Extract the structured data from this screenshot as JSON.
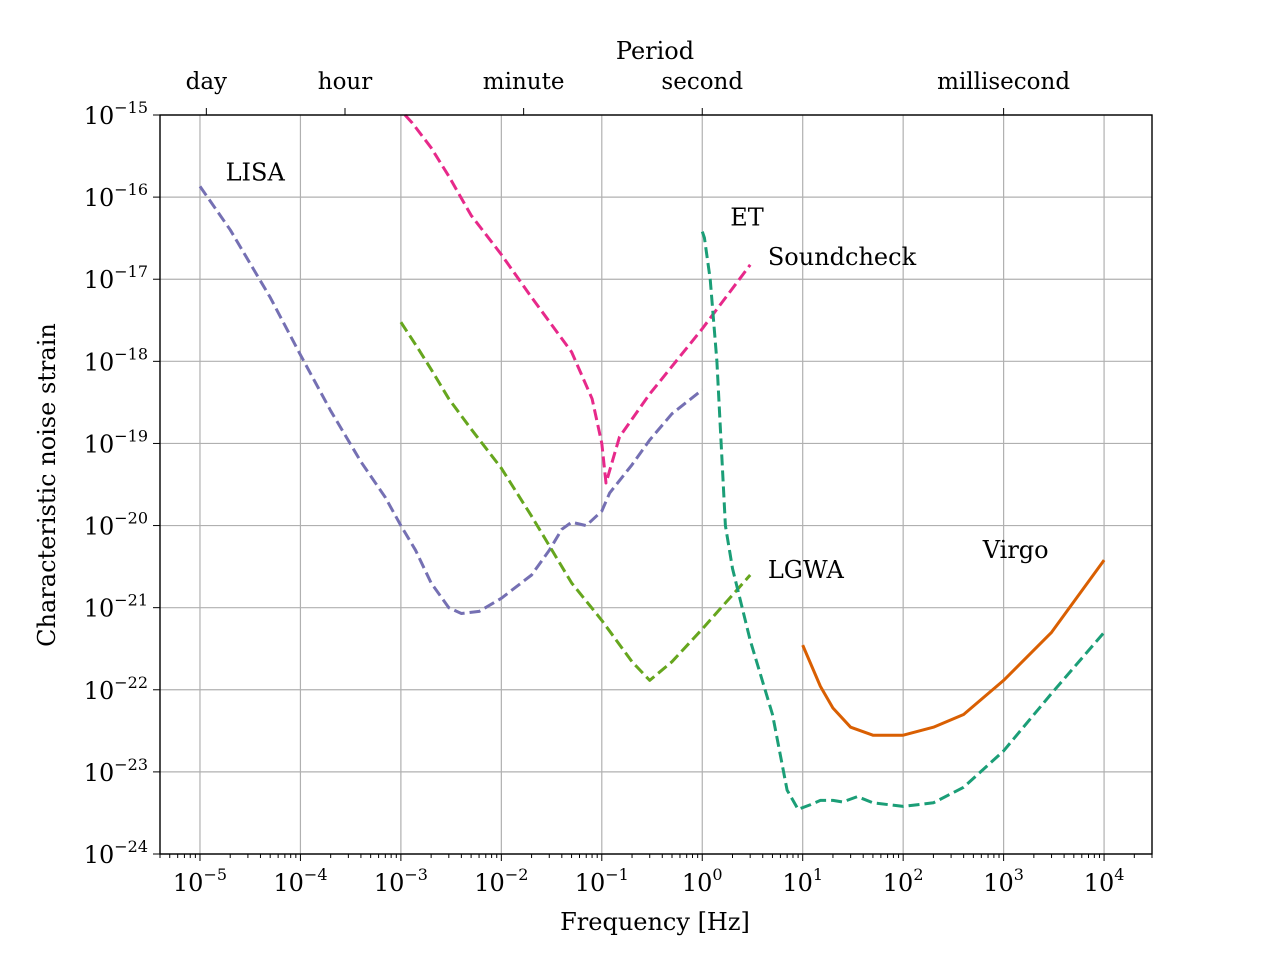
{
  "chart_data": {
    "type": "line",
    "xscale": "log",
    "yscale": "log",
    "xlabel": "Frequency [Hz]",
    "ylabel": "Characteristic noise strain",
    "xlim": [
      4e-06,
      30000
    ],
    "ylim": [
      1e-24,
      1e-15
    ],
    "grid": true,
    "x_ticks": [
      {
        "base": "10",
        "exp": "−5",
        "value": 1e-05
      },
      {
        "base": "10",
        "exp": "−4",
        "value": 0.0001
      },
      {
        "base": "10",
        "exp": "−3",
        "value": 0.001
      },
      {
        "base": "10",
        "exp": "−2",
        "value": 0.01
      },
      {
        "base": "10",
        "exp": "−1",
        "value": 0.1
      },
      {
        "base": "10",
        "exp": "0",
        "value": 1
      },
      {
        "base": "10",
        "exp": "1",
        "value": 10
      },
      {
        "base": "10",
        "exp": "2",
        "value": 100
      },
      {
        "base": "10",
        "exp": "3",
        "value": 1000
      },
      {
        "base": "10",
        "exp": "4",
        "value": 10000
      }
    ],
    "y_ticks": [
      {
        "base": "10",
        "exp": "−15",
        "value": 1e-15
      },
      {
        "base": "10",
        "exp": "−16",
        "value": 1e-16
      },
      {
        "base": "10",
        "exp": "−17",
        "value": 1e-17
      },
      {
        "base": "10",
        "exp": "−18",
        "value": 1e-18
      },
      {
        "base": "10",
        "exp": "−19",
        "value": 1e-19
      },
      {
        "base": "10",
        "exp": "−20",
        "value": 1e-20
      },
      {
        "base": "10",
        "exp": "−21",
        "value": 1e-21
      },
      {
        "base": "10",
        "exp": "−22",
        "value": 1e-22
      },
      {
        "base": "10",
        "exp": "−23",
        "value": 1e-23
      },
      {
        "base": "10",
        "exp": "−24",
        "value": 1e-24
      }
    ],
    "top_axis": {
      "title": "Period",
      "ticks": [
        {
          "label": "day",
          "freq": 1.157e-05
        },
        {
          "label": "hour",
          "freq": 0.0002778
        },
        {
          "label": "minute",
          "freq": 0.01667
        },
        {
          "label": "second",
          "freq": 1.0
        },
        {
          "label": "millisecond",
          "freq": 1000
        }
      ]
    },
    "series": [
      {
        "name": "LISA",
        "color": "#7570b3",
        "style": "dashed",
        "label_at": [
          1.8e-05,
          1.6e-16
        ],
        "points": [
          [
            1e-05,
            1.35e-16
          ],
          [
            2e-05,
            4e-17
          ],
          [
            5e-05,
            6e-18
          ],
          [
            0.0001,
            1.2e-18
          ],
          [
            0.0002,
            2.5e-19
          ],
          [
            0.0004,
            6e-20
          ],
          [
            0.0007,
            2.2e-20
          ],
          [
            0.001,
            1e-20
          ],
          [
            0.0014,
            5e-21
          ],
          [
            0.002,
            2e-21
          ],
          [
            0.003,
            1e-21
          ],
          [
            0.004,
            8.5e-22
          ],
          [
            0.006,
            9e-22
          ],
          [
            0.01,
            1.3e-21
          ],
          [
            0.02,
            2.5e-21
          ],
          [
            0.03,
            5e-21
          ],
          [
            0.04,
            9e-21
          ],
          [
            0.05,
            1.1e-20
          ],
          [
            0.07,
            1e-20
          ],
          [
            0.1,
            1.5e-20
          ],
          [
            0.12,
            2.5e-20
          ],
          [
            0.2,
            5.5e-20
          ],
          [
            0.3,
            1.1e-19
          ],
          [
            0.5,
            2.3e-19
          ],
          [
            1.0,
            4.5e-19
          ]
        ]
      },
      {
        "name": "Soundcheck",
        "color": "#e7298a",
        "style": "dashed",
        "label_at": [
          4.5,
          1.5e-17
        ],
        "points": [
          [
            0.0011,
            1e-15
          ],
          [
            0.0013,
            8e-16
          ],
          [
            0.002,
            4e-16
          ],
          [
            0.003,
            1.8e-16
          ],
          [
            0.005,
            6e-17
          ],
          [
            0.01,
            2e-17
          ],
          [
            0.02,
            6e-18
          ],
          [
            0.05,
            1.3e-18
          ],
          [
            0.08,
            3.5e-19
          ],
          [
            0.1,
            1e-19
          ],
          [
            0.11,
            3.3e-20
          ],
          [
            0.15,
            1.2e-19
          ],
          [
            0.3,
            4e-19
          ],
          [
            1.0,
            2.5e-18
          ],
          [
            3.0,
            1.5e-17
          ]
        ]
      },
      {
        "name": "LGWA",
        "color": "#66a61e",
        "style": "dashed",
        "label_at": [
          4.5,
          2.3e-21
        ],
        "points": [
          [
            0.001,
            3e-18
          ],
          [
            0.0015,
            1.4e-18
          ],
          [
            0.002,
            8e-19
          ],
          [
            0.003,
            3.5e-19
          ],
          [
            0.005,
            1.5e-19
          ],
          [
            0.01,
            5e-20
          ],
          [
            0.02,
            1.3e-20
          ],
          [
            0.05,
            2e-21
          ],
          [
            0.1,
            7e-22
          ],
          [
            0.2,
            2.2e-22
          ],
          [
            0.3,
            1.3e-22
          ],
          [
            0.5,
            2.2e-22
          ],
          [
            1.0,
            5.5e-22
          ],
          [
            3.0,
            2.5e-21
          ]
        ]
      },
      {
        "name": "ET",
        "color": "#1b9e77",
        "style": "dashed",
        "label_at": [
          1.9,
          4.5e-17
        ],
        "points": [
          [
            1.0,
            3.8e-17
          ],
          [
            1.05,
            3.2e-17
          ],
          [
            1.2,
            1e-17
          ],
          [
            1.4,
            1e-18
          ],
          [
            1.7,
            1e-20
          ],
          [
            2.0,
            3e-21
          ],
          [
            3.0,
            4e-22
          ],
          [
            5.0,
            5e-23
          ],
          [
            7.0,
            6e-24
          ],
          [
            9.0,
            3.5e-24
          ],
          [
            12,
            4e-24
          ],
          [
            15,
            4.5e-24
          ],
          [
            20,
            4.5e-24
          ],
          [
            25,
            4.3e-24
          ],
          [
            35,
            5e-24
          ],
          [
            50,
            4.2e-24
          ],
          [
            100,
            3.8e-24
          ],
          [
            200,
            4.2e-24
          ],
          [
            400,
            6.5e-24
          ],
          [
            1000,
            1.8e-23
          ],
          [
            3000,
            9e-23
          ],
          [
            10000,
            5e-22
          ]
        ]
      },
      {
        "name": "Virgo",
        "color": "#d95f02",
        "style": "solid",
        "label_at": [
          620,
          4e-21
        ],
        "points": [
          [
            10,
            3.5e-22
          ],
          [
            15,
            1.1e-22
          ],
          [
            20,
            6e-23
          ],
          [
            30,
            3.5e-23
          ],
          [
            50,
            2.8e-23
          ],
          [
            100,
            2.8e-23
          ],
          [
            200,
            3.5e-23
          ],
          [
            400,
            5e-23
          ],
          [
            1000,
            1.3e-22
          ],
          [
            3000,
            5e-22
          ],
          [
            10000,
            3.8e-21
          ]
        ]
      }
    ]
  }
}
